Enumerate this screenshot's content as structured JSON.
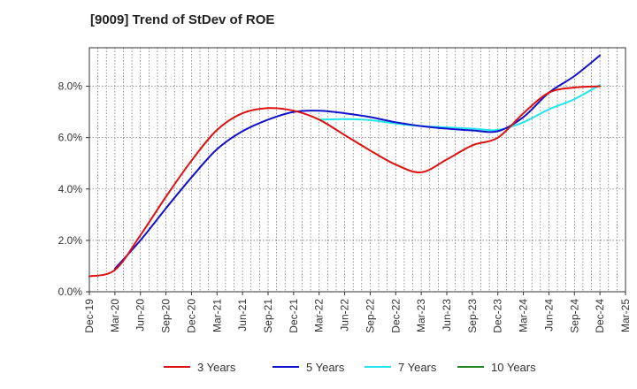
{
  "chart_data": {
    "type": "line",
    "title": "[9009]  Trend of StDev of ROE",
    "xlabel": "",
    "ylabel": "",
    "x_ticks": [
      "Dec-19",
      "Mar-20",
      "Jun-20",
      "Sep-20",
      "Dec-20",
      "Mar-21",
      "Jun-21",
      "Sep-21",
      "Dec-21",
      "Mar-22",
      "Jun-22",
      "Sep-22",
      "Dec-22",
      "Mar-23",
      "Jun-23",
      "Sep-23",
      "Dec-23",
      "Mar-24",
      "Jun-24",
      "Sep-24",
      "Dec-24",
      "Mar-25"
    ],
    "y_ticks": [
      "0.0%",
      "2.0%",
      "4.0%",
      "6.0%",
      "8.0%"
    ],
    "ylim": [
      0,
      9.5
    ],
    "y_unit": "%",
    "grid": true,
    "legend_position": "bottom",
    "series": [
      {
        "name": "3 Years",
        "color": "#dd1111",
        "x": [
          "Dec-19",
          "Mar-20",
          "Jun-20",
          "Sep-20",
          "Dec-20",
          "Mar-21",
          "Jun-21",
          "Sep-21",
          "Dec-21",
          "Mar-22",
          "Jun-22",
          "Sep-22",
          "Dec-22",
          "Mar-23",
          "Jun-23",
          "Sep-23",
          "Dec-23",
          "Mar-24",
          "Jun-24",
          "Sep-24",
          "Dec-24"
        ],
        "values": [
          0.6,
          0.85,
          2.2,
          3.7,
          5.1,
          6.3,
          6.95,
          7.15,
          7.05,
          6.7,
          6.1,
          5.5,
          4.95,
          4.65,
          5.15,
          5.7,
          6.0,
          6.95,
          7.75,
          7.95,
          8.0
        ]
      },
      {
        "name": "5 Years",
        "color": "#1111cc",
        "x": [
          "Mar-20",
          "Jun-20",
          "Sep-20",
          "Dec-20",
          "Mar-21",
          "Jun-21",
          "Sep-21",
          "Dec-21",
          "Mar-22",
          "Jun-22",
          "Sep-22",
          "Dec-22",
          "Mar-23",
          "Jun-23",
          "Sep-23",
          "Dec-23",
          "Mar-24",
          "Jun-24",
          "Sep-24",
          "Dec-24"
        ],
        "values": [
          0.9,
          2.0,
          3.25,
          4.45,
          5.55,
          6.25,
          6.7,
          7.0,
          7.05,
          6.95,
          6.8,
          6.6,
          6.45,
          6.35,
          6.28,
          6.25,
          6.8,
          7.75,
          8.4,
          9.2
        ]
      },
      {
        "name": "7 Years",
        "color": "#22e5ee",
        "x": [
          "Mar-22",
          "Jun-22",
          "Sep-22",
          "Dec-22",
          "Mar-23",
          "Jun-23",
          "Sep-23",
          "Dec-23",
          "Mar-24",
          "Jun-24",
          "Sep-24",
          "Dec-24"
        ],
        "values": [
          6.7,
          6.72,
          6.68,
          6.55,
          6.45,
          6.4,
          6.35,
          6.3,
          6.6,
          7.1,
          7.5,
          8.05
        ]
      },
      {
        "name": "10 Years",
        "color": "#228822",
        "x": [],
        "values": []
      }
    ]
  }
}
